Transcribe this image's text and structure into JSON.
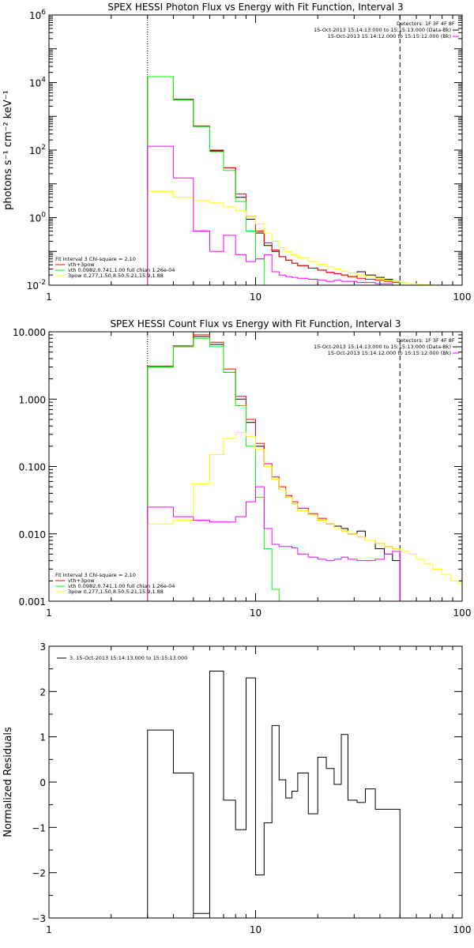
{
  "chart_data": [
    {
      "type": "line",
      "title": "SPEX HESSI Photon Flux vs Energy with Fit Function, Interval 3",
      "xlabel": "",
      "ylabel": "photons s⁻¹ cm⁻² keV⁻¹",
      "xscale": "log",
      "yscale": "log",
      "xlim": [
        1,
        100
      ],
      "ylim": [
        0.01,
        1000000
      ],
      "x_ticks": [
        {
          "v": 1,
          "label": "1"
        },
        {
          "v": 10,
          "label": "10"
        },
        {
          "v": 100,
          "label": "100"
        }
      ],
      "y_ticks": [
        {
          "v": 0.01,
          "base": "10",
          "exp": "-2"
        },
        {
          "v": 1,
          "base": "10",
          "exp": "0"
        },
        {
          "v": 100,
          "base": "10",
          "exp": "2"
        },
        {
          "v": 10000,
          "base": "10",
          "exp": "4"
        },
        {
          "v": 1000000,
          "base": "10",
          "exp": "6"
        }
      ],
      "vlines": [
        {
          "x": 3,
          "style": "dotted"
        },
        {
          "x": 50,
          "style": "dashed"
        }
      ],
      "legend_top_right": {
        "header": "Detectors: 1F 3F 4F 8F",
        "entries": [
          {
            "text": "15-Oct-2013 15:14:13.000 to 15:15:13.000 (Data-Bk)",
            "color": "#000000"
          },
          {
            "text": "15-Oct-2013 15:14:12.000 to 15:15:12.000 (Bk)",
            "color": "#ff00ff"
          }
        ]
      },
      "legend_bottom_left": {
        "header": "Fit Interval 3   Chi-square = 2.10",
        "entries": [
          {
            "text": "vth+3pow",
            "color": "#ff0000"
          },
          {
            "text": "vth 0.0982,0.741,1.00  full chian 1.26e-04",
            "color": "#00ff00"
          },
          {
            "text": "3pow 0.277,1.50,8.50,5.21,15.9,1.88",
            "color": "#ffff00"
          }
        ]
      },
      "series": [
        {
          "name": "15-Oct-2013 15:14:13.000 to 15:15:13.000 (Data-Bk)",
          "color": "#000000",
          "edges": [
            3,
            4,
            5,
            6,
            7,
            8,
            9,
            10,
            11,
            12,
            13,
            14,
            15,
            16,
            18,
            20,
            22,
            24,
            26,
            28,
            31,
            34,
            38,
            42,
            46,
            50
          ],
          "values": [
            15000,
            3200,
            500,
            95,
            30,
            4,
            0.9,
            0.35,
            0.15,
            0.1,
            0.07,
            0.055,
            0.045,
            0.038,
            0.032,
            0.028,
            0.024,
            0.022,
            0.02,
            0.018,
            0.025,
            0.02,
            0.017,
            0.015,
            0.013
          ]
        },
        {
          "name": "vth+3pow",
          "color": "#ff0000",
          "edges": [
            3,
            4,
            5,
            6,
            7,
            8,
            9,
            10,
            11,
            12,
            13,
            14,
            15,
            16,
            18,
            20,
            22,
            24,
            26,
            28,
            31,
            34,
            38,
            42,
            46,
            50
          ],
          "values": [
            15000,
            3200,
            520,
            100,
            30,
            5,
            1.1,
            0.4,
            0.18,
            0.11,
            0.07,
            0.055,
            0.045,
            0.038,
            0.032,
            0.028,
            0.024,
            0.022,
            0.02,
            0.018,
            0.016,
            0.015,
            0.014,
            0.013,
            0.012
          ]
        },
        {
          "name": "vth 0.0982,0.741,1.00  full chian 1.26e-04",
          "color": "#00ff00",
          "edges": [
            3,
            4,
            5,
            6,
            7,
            8,
            9,
            10,
            11,
            12
          ],
          "values": [
            15000,
            3000,
            500,
            90,
            25,
            3,
            0.4,
            0.06,
            0.002
          ]
        },
        {
          "name": "3pow 0.277,1.50,8.50,5.21,15.9,1.88",
          "color": "#ffff00",
          "edges": [
            3,
            4,
            5,
            6,
            7,
            8,
            9,
            10,
            11,
            12,
            13,
            14,
            15,
            16,
            18,
            20,
            22,
            24,
            26,
            28,
            31,
            34,
            38,
            42,
            46,
            50,
            55,
            60,
            66,
            72,
            80
          ],
          "values": [
            6,
            4,
            3.2,
            2.7,
            2.1,
            1.6,
            1.1,
            0.65,
            0.35,
            0.2,
            0.13,
            0.1,
            0.08,
            0.065,
            0.05,
            0.042,
            0.035,
            0.03,
            0.026,
            0.023,
            0.02,
            0.018,
            0.016,
            0.014,
            0.013,
            0.012,
            0.011,
            0.0105,
            0.0102,
            0.0101
          ]
        },
        {
          "name": "15-Oct-2013 15:14:12.000 to 15:15:12.000 (Bk)",
          "color": "#ff00ff",
          "edges": [
            3,
            4,
            5,
            6,
            7,
            8,
            9,
            10,
            11,
            12,
            13,
            14,
            15,
            16,
            18,
            20,
            22,
            24,
            26,
            28,
            31,
            34,
            38,
            42,
            46,
            50
          ],
          "values": [
            130,
            15,
            0.4,
            0.1,
            0.3,
            0.08,
            0.05,
            0.06,
            0.08,
            0.025,
            0.02,
            0.018,
            0.017,
            0.016,
            0.015,
            0.014,
            0.013,
            0.014,
            0.013,
            0.013,
            0.012,
            0.012,
            0.011,
            0.011,
            0.01
          ]
        }
      ]
    },
    {
      "type": "line",
      "title": "SPEX HESSI Count Flux vs Energy with Fit Function, Interval 3",
      "xlabel": "",
      "ylabel": "",
      "xscale": "log",
      "yscale": "log",
      "xlim": [
        1,
        100
      ],
      "ylim": [
        0.001,
        10
      ],
      "x_ticks": [
        {
          "v": 1,
          "label": "1"
        },
        {
          "v": 10,
          "label": "10"
        },
        {
          "v": 100,
          "label": "100"
        }
      ],
      "y_ticks": [
        {
          "v": 0.001,
          "label": "0.001"
        },
        {
          "v": 0.01,
          "label": "0.010"
        },
        {
          "v": 0.1,
          "label": "0.100"
        },
        {
          "v": 1,
          "label": "1.000"
        },
        {
          "v": 10,
          "label": "10.000"
        }
      ],
      "vlines": [
        {
          "x": 3,
          "style": "dotted"
        },
        {
          "x": 50,
          "style": "dashed"
        }
      ],
      "legend_top_right": {
        "header": "Detectors: 1F 3F 4F 8F",
        "entries": [
          {
            "text": "15-Oct-2013 15:14:13.000 to 15:15:13.000 (Data-Bk)",
            "color": "#000000"
          },
          {
            "text": "15-Oct-2013 15:14:12.000 to 15:15:12.000 (Bk)",
            "color": "#ff00ff"
          }
        ]
      },
      "legend_bottom_left": {
        "header": "Fit Interval 3   Chi-square = 2.10",
        "entries": [
          {
            "text": "vth+3pow",
            "color": "#ff0000"
          },
          {
            "text": "vth 0.0982,0.741,1.00  full chian 1.26e-04",
            "color": "#00ff00"
          },
          {
            "text": "3pow 0.277,1.50,8.50,5.21,15.9,1.88",
            "color": "#ffff00"
          }
        ]
      },
      "series": [
        {
          "name": "15-Oct-2013 15:14:13.000 to 15:15:13.000 (Data-Bk)",
          "color": "#000000",
          "edges": [
            3,
            4,
            5,
            6,
            7,
            8,
            9,
            10,
            11,
            12,
            13,
            14,
            15,
            16,
            18,
            20,
            22,
            24,
            26,
            28,
            31,
            34,
            38,
            42,
            46,
            50
          ],
          "values": [
            3,
            6,
            8.5,
            6.5,
            2.5,
            1,
            0.45,
            0.2,
            0.1,
            0.065,
            0.045,
            0.035,
            0.028,
            0.022,
            0.019,
            0.016,
            0.014,
            0.013,
            0.012,
            0.01,
            0.011,
            0.008,
            0.006,
            0.005,
            0.004
          ]
        },
        {
          "name": "vth+3pow",
          "color": "#ff0000",
          "edges": [
            3,
            4,
            5,
            6,
            7,
            8,
            9,
            10,
            11,
            12,
            13,
            14,
            15,
            16,
            18,
            20,
            22,
            24,
            26,
            28,
            31,
            34,
            38,
            42,
            46,
            50
          ],
          "values": [
            3.1,
            6.2,
            9,
            7,
            2.8,
            1.1,
            0.5,
            0.22,
            0.11,
            0.07,
            0.05,
            0.037,
            0.03,
            0.024,
            0.02,
            0.017,
            0.014,
            0.012,
            0.011,
            0.01,
            0.009,
            0.008,
            0.0072,
            0.0065,
            0.006
          ]
        },
        {
          "name": "vth 0.0982,0.741,1.00  full chian 1.26e-04",
          "color": "#00ff00",
          "edges": [
            3,
            4,
            5,
            6,
            7,
            8,
            9,
            10,
            11,
            12,
            13
          ],
          "values": [
            3,
            6,
            8,
            6,
            2.5,
            0.8,
            0.2,
            0.035,
            0.006,
            0.0015
          ]
        },
        {
          "name": "3pow 0.277,1.50,8.50,5.21,15.9,1.88",
          "color": "#ffff00",
          "edges": [
            3,
            4,
            5,
            6,
            7,
            8,
            9,
            10,
            11,
            12,
            13,
            14,
            15,
            16,
            18,
            20,
            22,
            24,
            26,
            28,
            31,
            34,
            38,
            42,
            46,
            50,
            55,
            60,
            66,
            72,
            80,
            88,
            96,
            100
          ],
          "values": [
            0.014,
            0.016,
            0.055,
            0.15,
            0.26,
            0.32,
            0.28,
            0.18,
            0.1,
            0.065,
            0.045,
            0.035,
            0.028,
            0.022,
            0.019,
            0.016,
            0.014,
            0.012,
            0.011,
            0.01,
            0.009,
            0.008,
            0.0072,
            0.0065,
            0.006,
            0.0055,
            0.005,
            0.0042,
            0.0036,
            0.003,
            0.0025,
            0.002,
            0.0018
          ]
        },
        {
          "name": "15-Oct-2013 15:14:12.000 to 15:15:12.000 (Bk)",
          "color": "#ff00ff",
          "edges": [
            3,
            4,
            5,
            6,
            7,
            8,
            9,
            10,
            11,
            12,
            13,
            14,
            15,
            16,
            18,
            20,
            22,
            24,
            26,
            28,
            31,
            34,
            38,
            42,
            46,
            50
          ],
          "values": [
            0.025,
            0.018,
            0.016,
            0.015,
            0.015,
            0.018,
            0.03,
            0.05,
            0.012,
            0.007,
            0.0065,
            0.0065,
            0.0062,
            0.005,
            0.0045,
            0.0042,
            0.004,
            0.0042,
            0.0045,
            0.0042,
            0.004,
            0.004,
            0.0042,
            0.005,
            0.0055
          ]
        }
      ]
    },
    {
      "type": "line",
      "title": "",
      "xlabel": "",
      "ylabel": "Normalized Residuals",
      "xscale": "log",
      "yscale": "linear",
      "xlim": [
        1,
        100
      ],
      "ylim": [
        -3,
        3
      ],
      "x_ticks": [
        {
          "v": 1,
          "label": "1"
        },
        {
          "v": 10,
          "label": "10"
        },
        {
          "v": 100,
          "label": "100"
        }
      ],
      "y_ticks": [
        {
          "v": -3,
          "label": "−3"
        },
        {
          "v": -2,
          "label": "−2"
        },
        {
          "v": -1,
          "label": "−1"
        },
        {
          "v": 0,
          "label": "0"
        },
        {
          "v": 1,
          "label": "1"
        },
        {
          "v": 2,
          "label": "2"
        },
        {
          "v": 3,
          "label": "3"
        }
      ],
      "legend_top_left": {
        "entries": [
          {
            "text": "3. 15-Oct-2013 15:14:13.000 to 15:15:13.000",
            "color": "#000000"
          }
        ]
      },
      "series": [
        {
          "name": "3. 15-Oct-2013 15:14:13.000 to 15:15:13.000",
          "color": "#000000",
          "edges": [
            3,
            4,
            5,
            6,
            7,
            8,
            9,
            10,
            11,
            12,
            13,
            14,
            15,
            16,
            18,
            20,
            22,
            24,
            26,
            28,
            31,
            34,
            38,
            42,
            46,
            50
          ],
          "values": [
            1.15,
            0.2,
            -2.9,
            2.45,
            -0.4,
            -1.05,
            2.3,
            -2.05,
            -0.9,
            1.25,
            0.05,
            -0.35,
            -0.2,
            0.2,
            -0.7,
            0.55,
            0.3,
            -0.05,
            1.05,
            -0.4,
            -0.45,
            -0.15,
            -0.6,
            -0.6,
            -0.6
          ]
        }
      ]
    }
  ]
}
